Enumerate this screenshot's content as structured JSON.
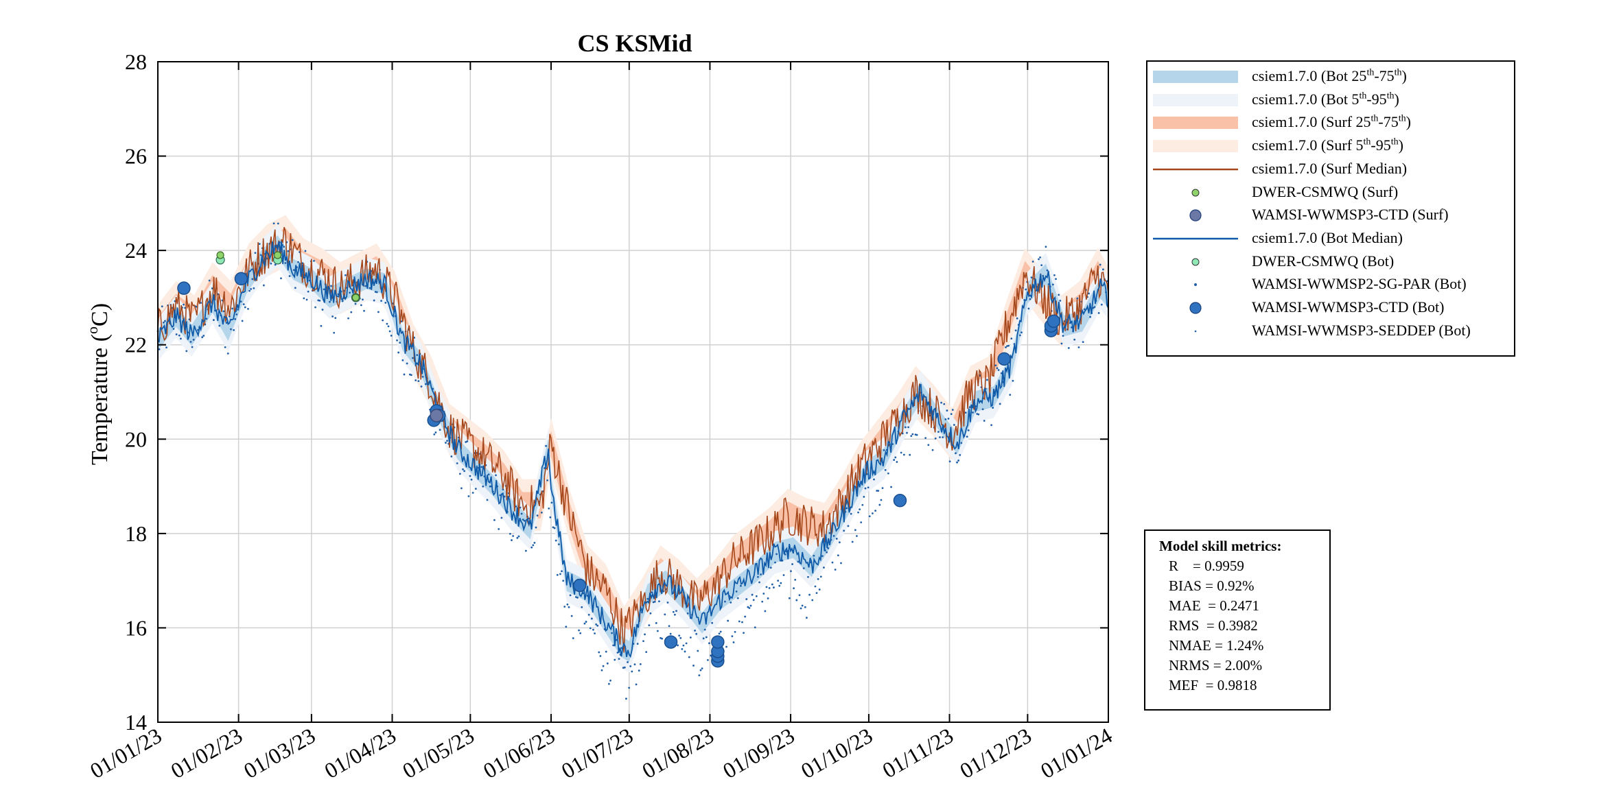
{
  "chart_data": {
    "type": "line",
    "title": "CS KSMid",
    "xlabel": "",
    "ylabel": "Temperature (°C)",
    "ylabel_parts": {
      "main": "Temperature (",
      "sup": "o",
      "tail": "C)"
    },
    "ylim": [
      14,
      28
    ],
    "yticks": [
      "14",
      "16",
      "18",
      "20",
      "22",
      "24",
      "26",
      "28"
    ],
    "xlim": [
      "2023-01-01",
      "2024-01-01"
    ],
    "xticks": [
      "01/01/23",
      "01/02/23",
      "01/03/23",
      "01/04/23",
      "01/05/23",
      "01/06/23",
      "01/07/23",
      "01/08/23",
      "01/09/23",
      "01/10/23",
      "01/11/23",
      "01/12/23",
      "01/01/24"
    ],
    "grid": true,
    "legend_position": "outside-right",
    "bottom_median": {
      "dates": [
        "2023-01-01",
        "2023-01-08",
        "2023-01-14",
        "2023-01-22",
        "2023-01-28",
        "2023-02-04",
        "2023-02-10",
        "2023-02-16",
        "2023-02-22",
        "2023-03-01",
        "2023-03-08",
        "2023-03-15",
        "2023-03-22",
        "2023-03-29",
        "2023-04-05",
        "2023-04-12",
        "2023-04-19",
        "2023-04-26",
        "2023-05-03",
        "2023-05-10",
        "2023-05-17",
        "2023-05-24",
        "2023-05-31",
        "2023-06-01",
        "2023-06-07",
        "2023-06-14",
        "2023-06-21",
        "2023-06-28",
        "2023-07-01",
        "2023-07-08",
        "2023-07-15",
        "2023-07-22",
        "2023-07-29",
        "2023-08-05",
        "2023-08-12",
        "2023-08-19",
        "2023-08-26",
        "2023-09-02",
        "2023-09-09",
        "2023-09-16",
        "2023-09-23",
        "2023-09-30",
        "2023-10-07",
        "2023-10-14",
        "2023-10-21",
        "2023-10-28",
        "2023-11-04",
        "2023-11-11",
        "2023-11-18",
        "2023-11-25",
        "2023-12-01",
        "2023-12-08",
        "2023-12-15",
        "2023-12-22",
        "2023-12-29",
        "2024-01-01"
      ],
      "values": [
        22.1,
        22.6,
        22.2,
        22.9,
        22.3,
        23.3,
        23.8,
        24.1,
        23.6,
        23.4,
        23.0,
        23.2,
        23.4,
        23.3,
        22.1,
        21.6,
        20.6,
        19.8,
        19.4,
        19.0,
        18.5,
        18.1,
        19.8,
        19.0,
        17.0,
        16.8,
        16.2,
        15.6,
        15.5,
        16.7,
        17.0,
        16.6,
        16.1,
        16.6,
        16.9,
        17.2,
        17.6,
        17.7,
        17.3,
        17.9,
        18.6,
        19.3,
        19.6,
        20.4,
        21.0,
        20.4,
        19.9,
        20.8,
        20.9,
        21.6,
        23.1,
        23.5,
        22.4,
        22.5,
        23.2,
        23.0
      ]
    },
    "surface_median": {
      "dates": [
        "2023-01-01",
        "2023-01-08",
        "2023-01-15",
        "2023-01-22",
        "2023-01-29",
        "2023-02-05",
        "2023-02-12",
        "2023-02-19",
        "2023-02-26",
        "2023-03-05",
        "2023-03-12",
        "2023-03-19",
        "2023-03-26",
        "2023-04-02",
        "2023-04-09",
        "2023-04-16",
        "2023-04-23",
        "2023-04-30",
        "2023-05-07",
        "2023-05-14",
        "2023-05-21",
        "2023-05-28",
        "2023-06-01",
        "2023-06-08",
        "2023-06-15",
        "2023-06-22",
        "2023-06-29",
        "2023-07-06",
        "2023-07-13",
        "2023-07-20",
        "2023-07-27",
        "2023-08-03",
        "2023-08-10",
        "2023-08-17",
        "2023-08-24",
        "2023-08-31",
        "2023-09-07",
        "2023-09-14",
        "2023-09-21",
        "2023-09-28",
        "2023-10-05",
        "2023-10-12",
        "2023-10-19",
        "2023-10-26",
        "2023-11-02",
        "2023-11-09",
        "2023-11-16",
        "2023-11-23",
        "2023-11-30",
        "2023-12-07",
        "2023-12-14",
        "2023-12-21",
        "2023-12-28",
        "2024-01-01"
      ],
      "values": [
        22.3,
        22.8,
        22.5,
        23.2,
        22.8,
        23.6,
        24.0,
        24.2,
        23.7,
        23.5,
        23.2,
        23.4,
        23.6,
        23.0,
        21.9,
        21.2,
        20.2,
        19.9,
        19.6,
        19.2,
        18.6,
        18.6,
        19.9,
        18.4,
        17.2,
        16.8,
        15.9,
        16.5,
        17.2,
        16.9,
        16.5,
        16.9,
        17.4,
        17.7,
        18.0,
        18.4,
        18.2,
        18.1,
        18.7,
        19.4,
        19.9,
        20.4,
        21.0,
        20.6,
        20.1,
        21.0,
        21.2,
        22.4,
        23.5,
        23.0,
        22.5,
        22.8,
        23.5,
        23.1
      ]
    },
    "observations": {
      "dwer_csmwq_surf": {
        "dates": [
          "2023-01-25",
          "2023-02-16",
          "2023-03-18"
        ],
        "values": [
          23.9,
          23.9,
          23.0
        ]
      },
      "dwer_csmwq_bot": {
        "dates": [
          "2023-01-25",
          "2023-02-16",
          "2023-03-18"
        ],
        "values": [
          23.8,
          23.8,
          23.0
        ]
      },
      "wamsi_ctd_surf": {
        "dates": [
          "2023-04-18"
        ],
        "values": [
          20.5
        ]
      },
      "wamsi_ctd_bot": {
        "dates": [
          "2023-01-11",
          "2023-02-02",
          "2023-04-17",
          "2023-04-18",
          "2023-04-19",
          "2023-06-12",
          "2023-07-17",
          "2023-08-04",
          "2023-08-04",
          "2023-08-04",
          "2023-08-04",
          "2023-10-13",
          "2023-11-22",
          "2023-12-10",
          "2023-12-10",
          "2023-12-11"
        ],
        "values": [
          23.2,
          23.4,
          20.4,
          20.6,
          20.5,
          16.9,
          15.7,
          15.3,
          15.4,
          15.5,
          15.7,
          18.7,
          21.7,
          22.3,
          22.4,
          22.5
        ]
      }
    },
    "legend": [
      {
        "key": "bot_iqr",
        "base": "csiem1.7.0 (Bot 25",
        "sup1": "th",
        "mid": "-75",
        "sup2": "th",
        "tail": ")",
        "color": "#b5d6ea"
      },
      {
        "key": "bot_595",
        "base": "csiem1.7.0 (Bot 5",
        "sup1": "th",
        "mid": "-95",
        "sup2": "th",
        "tail": ")",
        "color": "#eef2f9"
      },
      {
        "key": "surf_iqr",
        "base": "csiem1.7.0 (Surf 25",
        "sup1": "th",
        "mid": "-75",
        "sup2": "th",
        "tail": ")",
        "color": "#f9c2a8"
      },
      {
        "key": "surf_595",
        "base": "csiem1.7.0 (Surf 5",
        "sup1": "th",
        "mid": "-95",
        "sup2": "th",
        "tail": ")",
        "color": "#fcece2"
      },
      {
        "key": "surf_median",
        "base": "csiem1.7.0 (Surf Median)",
        "color": "#a5471b"
      },
      {
        "key": "dwer_surf",
        "base": "DWER-CSMWQ (Surf)",
        "color": "#8fd36b"
      },
      {
        "key": "ctd_surf",
        "base": "WAMSI-WWMSP3-CTD (Surf)",
        "color": "#6b78a5"
      },
      {
        "key": "bot_median",
        "base": "csiem1.7.0 (Bot Median)",
        "color": "#0f5aa8"
      },
      {
        "key": "dwer_bot",
        "base": "DWER-CSMWQ (Bot)",
        "color": "#8ee8b4"
      },
      {
        "key": "sgpar_bot",
        "base": "WAMSI-WWMSP2-SG-PAR (Bot)",
        "color": "#1f5fa8"
      },
      {
        "key": "ctd_bot",
        "base": "WAMSI-WWMSP3-CTD (Bot)",
        "color": "#2f73c0"
      },
      {
        "key": "seddep_bot",
        "base": "WAMSI-WWMSP3-SEDDEP (Bot)",
        "color": "#1f5fa8"
      }
    ],
    "skill_metrics": {
      "title": "Model skill metrics:",
      "lines": [
        "R    = 0.9959",
        "BIAS = 0.92%",
        "MAE  = 0.2471",
        "RMS  = 0.3982",
        "NMAE = 1.24%",
        "NRMS = 2.00%",
        "MEF  = 0.9818"
      ]
    }
  }
}
